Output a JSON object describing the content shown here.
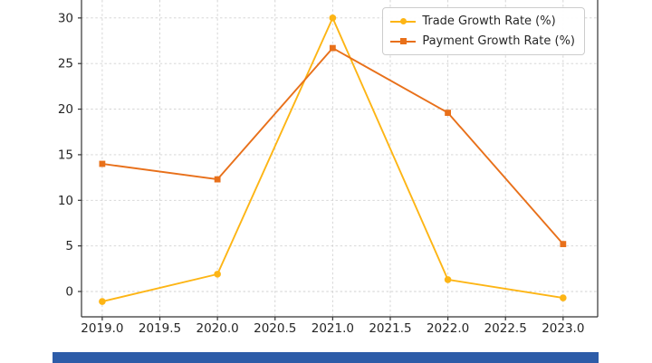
{
  "chart_data": {
    "type": "line",
    "x": [
      2019.0,
      2020.0,
      2021.0,
      2022.0,
      2023.0
    ],
    "series": [
      {
        "name": "Trade Growth Rate (%)",
        "color": "#FDB515",
        "marker": "circle",
        "values": [
          -1.1,
          1.9,
          30.0,
          1.3,
          -0.7
        ]
      },
      {
        "name": "Payment Growth Rate (%)",
        "color": "#E8701A",
        "marker": "square",
        "values": [
          14.0,
          12.3,
          26.7,
          19.6,
          5.2
        ]
      }
    ],
    "title": "",
    "xlabel": "",
    "ylabel": "",
    "xticks": [
      2019.0,
      2019.5,
      2020.0,
      2020.5,
      2021.0,
      2021.5,
      2022.0,
      2022.5,
      2023.0
    ],
    "xtick_labels": [
      "2019.0",
      "2019.5",
      "2020.0",
      "2020.5",
      "2021.0",
      "2021.5",
      "2022.0",
      "2022.5",
      "2023.0"
    ],
    "yticks": [
      0,
      5,
      10,
      15,
      20,
      25,
      30
    ],
    "ytick_labels": [
      "0",
      "5",
      "10",
      "15",
      "20",
      "25",
      "30"
    ],
    "xlim": [
      2018.82,
      2023.3
    ],
    "ylim": [
      -2.78,
      31.97
    ],
    "grid": true,
    "grid_style": "dashed",
    "legend_position": "upper right"
  },
  "ui": {
    "grid_color": "#c9c9c9",
    "spine_color": "#333333",
    "tick_label_color": "#262626",
    "bottom_bar_color": "#2D5CA8"
  }
}
